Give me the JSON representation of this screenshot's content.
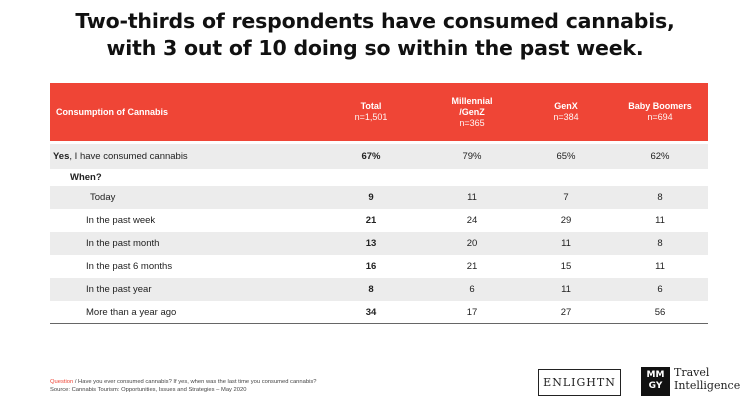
{
  "title": {
    "line1": "Two-thirds of respondents have consumed cannabis,",
    "line2": "with 3 out of 10 doing so within the past week."
  },
  "table": {
    "header": {
      "label": "Consumption of Cannabis",
      "columns": [
        {
          "name": "Total",
          "n": "n=1,501"
        },
        {
          "name": "Millennial",
          "name2": "/GenZ",
          "n": "n=365"
        },
        {
          "name": "GenX",
          "n": "n=384"
        },
        {
          "name": "Baby Boomers",
          "n": "n=694"
        }
      ]
    },
    "consumed_row": {
      "label_bold": "Yes",
      "label_rest": ", I have consumed cannabis",
      "values": [
        "67%",
        "79%",
        "65%",
        "62%"
      ]
    },
    "when_label": "When?",
    "rows": [
      {
        "label": "Today",
        "values": [
          "9",
          "11",
          "7",
          "8"
        ]
      },
      {
        "label": "In the past week",
        "values": [
          "21",
          "24",
          "29",
          "11"
        ]
      },
      {
        "label": "In the past month",
        "values": [
          "13",
          "20",
          "11",
          "8"
        ]
      },
      {
        "label": "In the past 6 months",
        "values": [
          "16",
          "21",
          "15",
          "11"
        ]
      },
      {
        "label": "In the past year",
        "values": [
          "8",
          "6",
          "11",
          "6"
        ]
      },
      {
        "label": "More than a year ago",
        "values": [
          "34",
          "17",
          "27",
          "56"
        ]
      }
    ]
  },
  "footer": {
    "question_label": "Question",
    "question_text": " / Have you ever consumed cannabis? If yes, when was the last time you consumed cannabis?",
    "source": "Source: Cannabis Tourism: Opportunities, Issues and Strategies – May 2020"
  },
  "logos": {
    "enlightn": "ENLIGHTN",
    "mmgy_top": "MM",
    "mmgy_bottom": "GY",
    "travel": "Travel",
    "intelligence": "Intelligence"
  },
  "colors": {
    "accent": "#ef4536",
    "shade": "#ececec"
  }
}
